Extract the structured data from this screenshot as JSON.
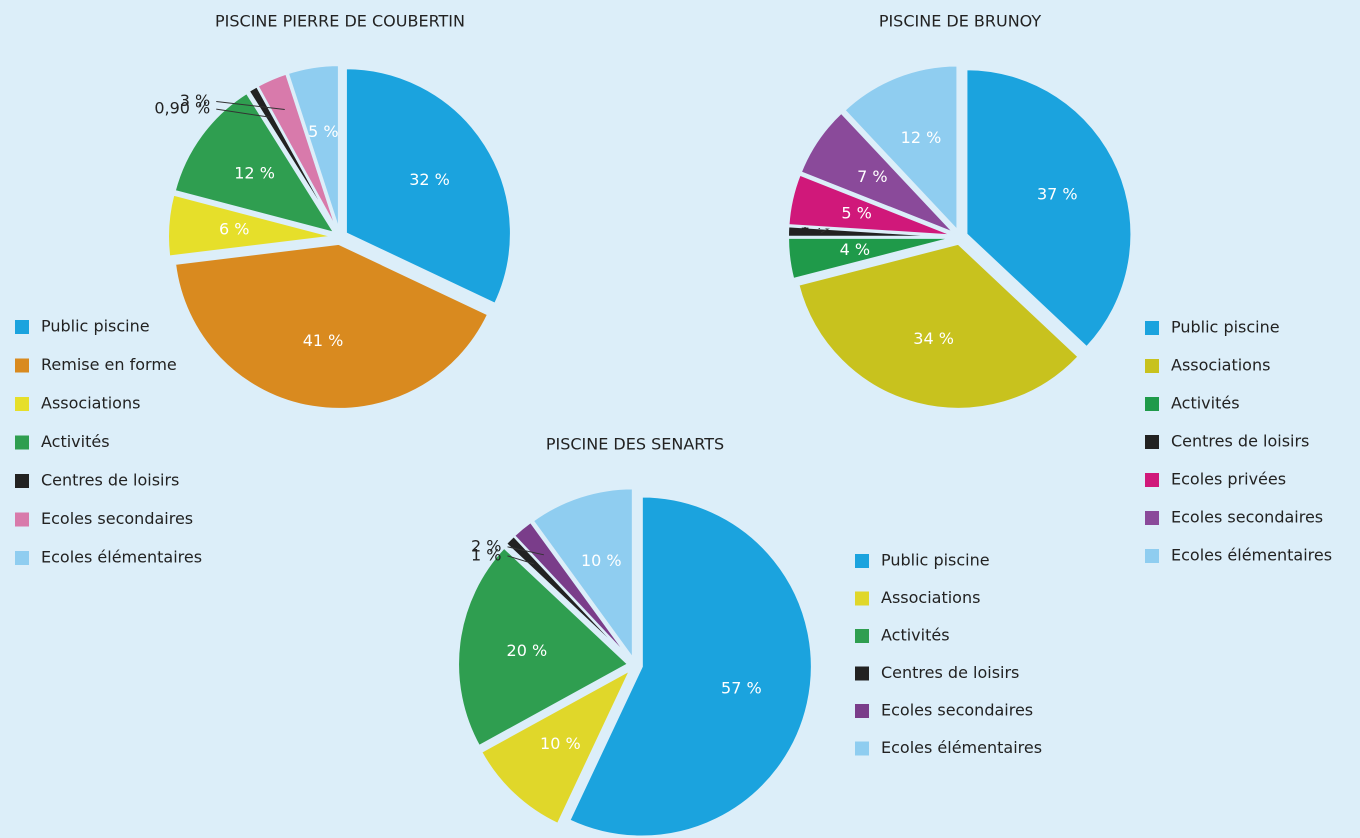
{
  "chart_data": [
    {
      "type": "pie",
      "title": "PISCINE PIERRE DE COUBERTIN",
      "categories": [
        "Public piscine",
        "Remise en forme",
        "Associations",
        "Activités",
        "Centres de loisirs",
        "Ecoles secondaires",
        "Ecoles élémentaires"
      ],
      "values": [
        32,
        41,
        6,
        12,
        0.9,
        3,
        5
      ],
      "value_labels": [
        "32 %",
        "41 %",
        "6 %",
        "12 %",
        "0,90 %",
        "3 %",
        "5 %"
      ],
      "colors": [
        "#1ba3de",
        "#d98a1f",
        "#e6df2a",
        "#2f9e50",
        "#222222",
        "#d87aab",
        "#8fcdf0"
      ]
    },
    {
      "type": "pie",
      "title": "PISCINE DE BRUNOY",
      "categories": [
        "Public piscine",
        "Associations",
        "Activités",
        "Centres de loisirs",
        "Ecoles privées",
        "Ecoles secondaires",
        "Ecoles élémentaires"
      ],
      "values": [
        37,
        34,
        4,
        1,
        5,
        7,
        12
      ],
      "value_labels": [
        "37 %",
        "34 %",
        "4 %",
        "1 %",
        "5 %",
        "7 %",
        "12 %"
      ],
      "colors": [
        "#1ba3de",
        "#c8c21e",
        "#1f9a4a",
        "#222222",
        "#d0187a",
        "#8a4a9a",
        "#8fcdf0"
      ]
    },
    {
      "type": "pie",
      "title": "PISCINE DES SENARTS",
      "categories": [
        "Public piscine",
        "Associations",
        "Activités",
        "Centres de loisirs",
        "Ecoles secondaires",
        "Ecoles élémentaires"
      ],
      "values": [
        57,
        10,
        20,
        1,
        2,
        10
      ],
      "value_labels": [
        "57 %",
        "10 %",
        "20 %",
        "1 %",
        "2 %",
        "10 %"
      ],
      "colors": [
        "#1ba3de",
        "#e0d72a",
        "#2f9e50",
        "#222222",
        "#7a3d8a",
        "#8fcdf0"
      ]
    }
  ]
}
